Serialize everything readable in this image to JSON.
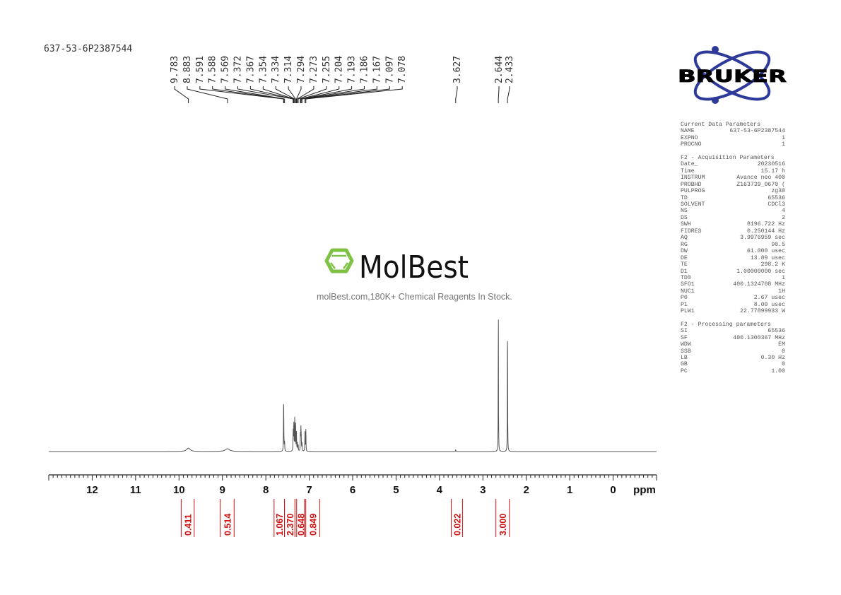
{
  "sample_name": "637-53-6P2387544",
  "watermark": {
    "brand": "MolBest",
    "tagline": "molBest.com,180K+ Chemical Reagents In Stock.",
    "color": "#7dc242"
  },
  "logo": {
    "text": "BRUKER",
    "color": "#2e3a9a"
  },
  "parameters": {
    "current": {
      "title": "Current Data Parameters",
      "rows": [
        [
          "NAME",
          "637-53-6P2387544"
        ],
        [
          "EXPNO",
          "1"
        ],
        [
          "PROCNO",
          "1"
        ]
      ]
    },
    "acquisition": {
      "title": "F2 - Acquisition Parameters",
      "rows": [
        [
          "Date_",
          "20230516"
        ],
        [
          "Time",
          "15.17 h"
        ],
        [
          "INSTRUM",
          "Avance neo 400"
        ],
        [
          "PROBHD",
          "Z163739_0670 ("
        ],
        [
          "PULPROG",
          "zg30"
        ],
        [
          "TD",
          "65536"
        ],
        [
          "SOLVENT",
          "CDCl3"
        ],
        [
          "NS",
          "4"
        ],
        [
          "DS",
          "2"
        ],
        [
          "SWH",
          "8196.722 Hz"
        ],
        [
          "FIDRES",
          "0.250144 Hz"
        ],
        [
          "AQ",
          "3.9976959 sec"
        ],
        [
          "RG",
          "90.5"
        ],
        [
          "DW",
          "61.000 usec"
        ],
        [
          "DE",
          "13.89 usec"
        ],
        [
          "TE",
          "298.2 K"
        ],
        [
          "D1",
          "1.00000000 sec"
        ],
        [
          "TD0",
          "1"
        ],
        [
          "SFO1",
          "400.1324708 MHz"
        ],
        [
          "NUC1",
          "1H"
        ],
        [
          "P0",
          "2.67 usec"
        ],
        [
          "P1",
          "8.00 usec"
        ],
        [
          "PLW1",
          "22.77899933 W"
        ]
      ]
    },
    "processing": {
      "title": "F2 - Processing parameters",
      "rows": [
        [
          "SI",
          "65536"
        ],
        [
          "SF",
          "400.1300367 MHz"
        ],
        [
          "WDW",
          "EM"
        ],
        [
          "SSB",
          "0"
        ],
        [
          "LB",
          "0.30 Hz"
        ],
        [
          "GB",
          "0"
        ],
        [
          "PC",
          "1.00"
        ]
      ]
    }
  },
  "chart_data": {
    "type": "line",
    "xlabel": "ppm",
    "xlim": [
      13,
      -1
    ],
    "x_reversed": true,
    "x_ticks": [
      "12",
      "11",
      "10",
      "9",
      "8",
      "7",
      "6",
      "5",
      "4",
      "3",
      "2",
      "1",
      "0"
    ],
    "grid": false,
    "peak_labels": [
      "9.783",
      "8.883",
      "7.591",
      "7.588",
      "7.569",
      "7.372",
      "7.367",
      "7.354",
      "7.334",
      "7.314",
      "7.294",
      "7.273",
      "7.255",
      "7.204",
      "7.193",
      "7.186",
      "7.167",
      "7.097",
      "7.078",
      "3.627",
      "2.644",
      "2.433"
    ],
    "peaks": [
      {
        "ppm": 9.783,
        "rel_intensity": 0.02,
        "width": 0.05
      },
      {
        "ppm": 8.883,
        "rel_intensity": 0.017,
        "width": 0.06
      },
      {
        "ppm": 7.591,
        "rel_intensity": 0.18,
        "width": 0.004
      },
      {
        "ppm": 7.588,
        "rel_intensity": 0.17,
        "width": 0.004
      },
      {
        "ppm": 7.569,
        "rel_intensity": 0.06,
        "width": 0.004
      },
      {
        "ppm": 7.372,
        "rel_intensity": 0.07,
        "width": 0.004
      },
      {
        "ppm": 7.367,
        "rel_intensity": 0.09,
        "width": 0.004
      },
      {
        "ppm": 7.354,
        "rel_intensity": 0.17,
        "width": 0.004
      },
      {
        "ppm": 7.334,
        "rel_intensity": 0.2,
        "width": 0.004
      },
      {
        "ppm": 7.314,
        "rel_intensity": 0.16,
        "width": 0.004
      },
      {
        "ppm": 7.294,
        "rel_intensity": 0.11,
        "width": 0.004
      },
      {
        "ppm": 7.273,
        "rel_intensity": 0.05,
        "width": 0.004
      },
      {
        "ppm": 7.255,
        "rel_intensity": 0.04,
        "width": 0.004
      },
      {
        "ppm": 7.204,
        "rel_intensity": 0.1,
        "width": 0.004
      },
      {
        "ppm": 7.193,
        "rel_intensity": 0.12,
        "width": 0.004
      },
      {
        "ppm": 7.186,
        "rel_intensity": 0.09,
        "width": 0.004
      },
      {
        "ppm": 7.167,
        "rel_intensity": 0.05,
        "width": 0.004
      },
      {
        "ppm": 7.097,
        "rel_intensity": 0.14,
        "width": 0.004
      },
      {
        "ppm": 7.078,
        "rel_intensity": 0.13,
        "width": 0.004
      },
      {
        "ppm": 3.627,
        "rel_intensity": 0.012,
        "width": 0.004
      },
      {
        "ppm": 2.644,
        "rel_intensity": 1.0,
        "width": 0.003
      },
      {
        "ppm": 2.433,
        "rel_intensity": 0.92,
        "width": 0.003
      }
    ],
    "integrals": [
      {
        "from": 9.95,
        "to": 9.65,
        "value": "0.411"
      },
      {
        "from": 9.05,
        "to": 8.73,
        "value": "0.514"
      },
      {
        "from": 7.81,
        "to": 7.57,
        "value": "1.067"
      },
      {
        "from": 7.57,
        "to": 7.33,
        "value": "2.370"
      },
      {
        "from": 7.29,
        "to": 7.11,
        "value": "0.648"
      },
      {
        "from": 7.08,
        "to": 6.76,
        "value": "0.849"
      },
      {
        "from": 3.73,
        "to": 3.47,
        "value": "0.022"
      },
      {
        "from": 2.7,
        "to": 2.39,
        "value": "3.000"
      }
    ],
    "colors": {
      "spectrum": "#555555",
      "integral": "#d01010",
      "axis": "#222222"
    }
  }
}
